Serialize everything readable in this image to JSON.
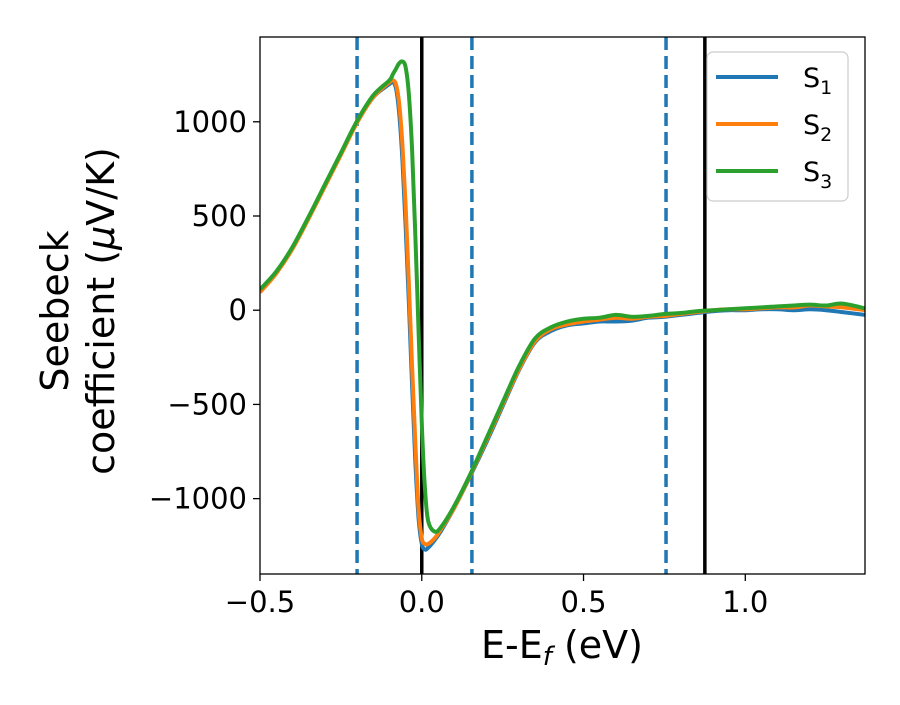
{
  "chart_data": {
    "type": "line",
    "title": "",
    "xlabel": "E-E",
    "xlabel_sub": "f",
    "xlabel_suffix": " (eV)",
    "ylabel_line1": "Seebeck",
    "ylabel_line2": "coefficient  (",
    "ylabel_mu": "μ",
    "ylabel_unit": "V/K)",
    "xlim": [
      -0.5,
      1.37
    ],
    "ylim": [
      -1400,
      1450
    ],
    "xticks": [
      -0.5,
      0.0,
      0.5,
      1.0
    ],
    "xtick_labels": [
      "−0.5",
      "0.0",
      "0.5",
      "1.0"
    ],
    "yticks": [
      -1000,
      -500,
      0,
      500,
      1000
    ],
    "ytick_labels": [
      "−1000",
      "−500",
      "0",
      "500",
      "1000"
    ],
    "grid": false,
    "legend_position": "top-right",
    "series": [
      {
        "name": "S",
        "name_sub": "1",
        "color": "#1f77b4",
        "x": [
          -0.5,
          -0.45,
          -0.4,
          -0.35,
          -0.3,
          -0.25,
          -0.2,
          -0.15,
          -0.1,
          -0.09,
          -0.08,
          -0.07,
          -0.06,
          -0.05,
          -0.04,
          -0.03,
          -0.02,
          -0.01,
          0.0,
          0.01,
          0.02,
          0.04,
          0.06,
          0.1,
          0.15,
          0.2,
          0.25,
          0.3,
          0.35,
          0.4,
          0.45,
          0.5,
          0.55,
          0.6,
          0.65,
          0.7,
          0.75,
          0.8,
          0.85,
          0.9,
          0.95,
          1.0,
          1.05,
          1.1,
          1.15,
          1.2,
          1.25,
          1.3,
          1.37
        ],
        "y": [
          100,
          200,
          330,
          490,
          660,
          830,
          1000,
          1130,
          1200,
          1210,
          1180,
          1050,
          800,
          450,
          50,
          -400,
          -800,
          -1100,
          -1240,
          -1270,
          -1260,
          -1220,
          -1170,
          -1050,
          -880,
          -700,
          -510,
          -320,
          -170,
          -110,
          -80,
          -70,
          -60,
          -60,
          -55,
          -40,
          -35,
          -25,
          -15,
          -5,
          0,
          0,
          5,
          5,
          0,
          5,
          0,
          -10,
          -25
        ]
      },
      {
        "name": "S",
        "name_sub": "2",
        "color": "#ff7f0e",
        "x": [
          -0.5,
          -0.45,
          -0.4,
          -0.35,
          -0.3,
          -0.25,
          -0.2,
          -0.15,
          -0.1,
          -0.09,
          -0.08,
          -0.07,
          -0.06,
          -0.05,
          -0.04,
          -0.03,
          -0.02,
          -0.01,
          0.0,
          0.01,
          0.02,
          0.04,
          0.06,
          0.1,
          0.15,
          0.2,
          0.25,
          0.3,
          0.35,
          0.4,
          0.45,
          0.5,
          0.55,
          0.6,
          0.65,
          0.7,
          0.75,
          0.8,
          0.85,
          0.9,
          0.95,
          1.0,
          1.05,
          1.1,
          1.15,
          1.2,
          1.25,
          1.3,
          1.37
        ],
        "y": [
          95,
          195,
          325,
          485,
          655,
          825,
          995,
          1130,
          1210,
          1220,
          1200,
          1100,
          880,
          560,
          150,
          -300,
          -700,
          -1050,
          -1210,
          -1240,
          -1240,
          -1210,
          -1160,
          -1050,
          -875,
          -690,
          -500,
          -315,
          -165,
          -100,
          -75,
          -60,
          -50,
          -40,
          -45,
          -35,
          -30,
          -20,
          -10,
          0,
          5,
          5,
          10,
          15,
          15,
          25,
          20,
          15,
          0
        ]
      },
      {
        "name": "S",
        "name_sub": "3",
        "color": "#2ca02c",
        "x": [
          -0.5,
          -0.45,
          -0.4,
          -0.35,
          -0.3,
          -0.25,
          -0.2,
          -0.15,
          -0.1,
          -0.09,
          -0.08,
          -0.07,
          -0.06,
          -0.05,
          -0.04,
          -0.03,
          -0.02,
          -0.01,
          0.0,
          0.01,
          0.02,
          0.04,
          0.06,
          0.1,
          0.15,
          0.2,
          0.25,
          0.3,
          0.35,
          0.4,
          0.45,
          0.5,
          0.55,
          0.6,
          0.65,
          0.7,
          0.75,
          0.8,
          0.85,
          0.9,
          0.95,
          1.0,
          1.05,
          1.1,
          1.15,
          1.2,
          1.25,
          1.3,
          1.37
        ],
        "y": [
          110,
          205,
          335,
          495,
          665,
          835,
          1005,
          1140,
          1220,
          1250,
          1280,
          1310,
          1320,
          1290,
          1150,
          850,
          400,
          -100,
          -600,
          -950,
          -1120,
          -1175,
          -1150,
          -1040,
          -870,
          -680,
          -490,
          -300,
          -150,
          -90,
          -60,
          -45,
          -40,
          -25,
          -35,
          -30,
          -20,
          -15,
          -5,
          0,
          5,
          10,
          15,
          20,
          25,
          30,
          25,
          35,
          10
        ]
      }
    ],
    "vlines_solid": [
      0.0,
      0.875
    ],
    "vlines_dashed": [
      -0.2,
      0.155,
      0.755
    ],
    "solid_line_color": "#000000",
    "dashed_line_color": "#1f77b4"
  }
}
